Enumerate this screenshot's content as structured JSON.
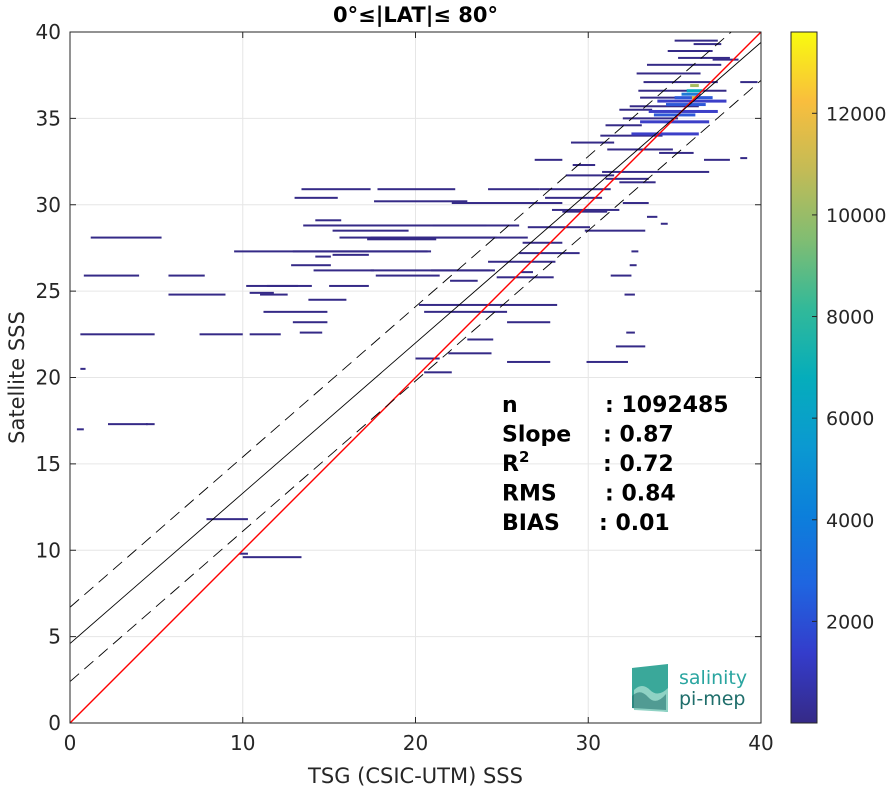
{
  "chart_data": {
    "type": "scatter",
    "title": "0°≤|LAT|≤ 80°",
    "xlabel": "TSG (CSIC-UTM) SSS",
    "ylabel": "Satellite SSS",
    "xlim": [
      0,
      40
    ],
    "ylim": [
      0,
      40
    ],
    "xticks": [
      "0",
      "10",
      "20",
      "30",
      "40"
    ],
    "yticks": [
      "0",
      "5",
      "10",
      "15",
      "20",
      "25",
      "30",
      "35",
      "40"
    ],
    "grid": true,
    "colorbar": {
      "range": [
        0,
        13600
      ],
      "ticks": [
        "2000",
        "4000",
        "6000",
        "8000",
        "10000",
        "12000"
      ],
      "tick_values": [
        2000,
        4000,
        6000,
        8000,
        10000,
        12000
      ],
      "colormap": "parula"
    },
    "lines": [
      {
        "kind": "identity",
        "color": "#ff0000",
        "slope": 1.0,
        "intercept": 0.0
      },
      {
        "kind": "regression",
        "color": "#000000",
        "slope": 0.87,
        "intercept": 4.6
      },
      {
        "kind": "upper-bound",
        "color": "#000000",
        "dash": true,
        "slope": 0.87,
        "intercept": 6.7
      },
      {
        "kind": "lower-bound",
        "color": "#000000",
        "dash": true,
        "slope": 0.87,
        "intercept": 2.4
      }
    ],
    "stats": [
      {
        "label": "n",
        "value": ": 1092485"
      },
      {
        "label": "Slope",
        "value": ": 0.87"
      },
      {
        "label": "R",
        "sup": "2",
        "value": ": 0.72"
      },
      {
        "label": "RMS",
        "value": ": 0.84"
      },
      {
        "label": "BIAS",
        "value": ": 0.01"
      }
    ],
    "density_segments": [
      [
        0.4,
        17.0,
        0.8,
        1
      ],
      [
        2.2,
        17.3,
        4.5,
        1
      ],
      [
        4.4,
        17.3,
        4.9,
        1
      ],
      [
        0.6,
        20.5,
        0.9,
        1
      ],
      [
        0.6,
        22.5,
        4.9,
        1
      ],
      [
        0.8,
        25.9,
        4.0,
        1
      ],
      [
        1.2,
        28.1,
        5.3,
        1
      ],
      [
        5.7,
        25.9,
        7.8,
        1
      ],
      [
        5.7,
        24.8,
        9.0,
        1
      ],
      [
        7.5,
        22.5,
        10.0,
        1
      ],
      [
        10.4,
        22.5,
        12.2,
        1
      ],
      [
        9.5,
        27.3,
        20.7,
        1
      ],
      [
        10.2,
        25.3,
        13.2,
        1
      ],
      [
        11.0,
        24.8,
        12.6,
        1
      ],
      [
        11.4,
        25.3,
        14.0,
        1
      ],
      [
        11.2,
        23.8,
        14.9,
        1
      ],
      [
        12.9,
        23.2,
        14.9,
        1
      ],
      [
        10.4,
        24.9,
        11.8,
        1
      ],
      [
        13.3,
        22.6,
        14.6,
        1
      ],
      [
        13.8,
        24.5,
        16.0,
        1
      ],
      [
        12.8,
        26.5,
        15.1,
        1
      ],
      [
        14.2,
        27.0,
        15.1,
        1
      ],
      [
        12.9,
        27.3,
        20.9,
        1
      ],
      [
        13.0,
        30.4,
        15.5,
        1
      ],
      [
        13.4,
        30.9,
        17.4,
        1
      ],
      [
        14.2,
        29.1,
        15.7,
        1
      ],
      [
        15.2,
        27.1,
        17.3,
        1
      ],
      [
        15.6,
        28.1,
        24.7,
        1
      ],
      [
        17.4,
        28.1,
        26.5,
        1
      ],
      [
        14.1,
        26.2,
        17.6,
        1
      ],
      [
        15.0,
        25.3,
        17.3,
        1
      ],
      [
        13.5,
        28.8,
        26.0,
        1
      ],
      [
        15.2,
        28.5,
        19.6,
        1
      ],
      [
        17.7,
        25.9,
        21.4,
        1
      ],
      [
        17.4,
        26.2,
        24.6,
        1
      ],
      [
        20.9,
        26.2,
        24.3,
        1
      ],
      [
        21.0,
        28.8,
        24.1,
        1
      ],
      [
        22.0,
        25.6,
        23.6,
        1
      ],
      [
        17.2,
        28.0,
        21.2,
        1
      ],
      [
        17.6,
        30.2,
        23.0,
        1
      ],
      [
        17.8,
        30.9,
        22.3,
        1
      ],
      [
        22.1,
        30.1,
        28.5,
        1
      ],
      [
        24.2,
        30.9,
        27.2,
        1
      ],
      [
        27.2,
        30.9,
        31.3,
        1
      ],
      [
        24.2,
        26.7,
        28.1,
        1
      ],
      [
        24.7,
        25.8,
        28.0,
        1
      ],
      [
        26.0,
        27.2,
        29.5,
        1
      ],
      [
        26.2,
        27.8,
        28.5,
        1
      ],
      [
        26.5,
        28.7,
        30.1,
        1
      ],
      [
        26.1,
        26.1,
        26.8,
        1
      ],
      [
        27.9,
        29.7,
        31.8,
        1
      ],
      [
        27.5,
        30.4,
        30.8,
        1
      ],
      [
        28.5,
        29.6,
        31.1,
        1
      ],
      [
        29.8,
        28.5,
        33.3,
        1
      ],
      [
        20.2,
        24.2,
        28.2,
        1
      ],
      [
        25.3,
        23.2,
        27.8,
        1
      ],
      [
        20.5,
        23.8,
        25.3,
        1
      ],
      [
        21.9,
        21.4,
        24.4,
        1
      ],
      [
        20.0,
        21.1,
        21.4,
        1
      ],
      [
        25.3,
        20.9,
        27.8,
        1
      ],
      [
        20.5,
        20.3,
        22.1,
        1
      ],
      [
        7.9,
        11.8,
        10.3,
        1
      ],
      [
        10.0,
        9.6,
        13.4,
        1
      ],
      [
        9.8,
        9.8,
        10.3,
        1
      ],
      [
        23.0,
        22.2,
        24.5,
        1
      ],
      [
        29.9,
        20.9,
        32.3,
        1
      ],
      [
        31.6,
        21.8,
        33.3,
        1
      ],
      [
        32.2,
        22.6,
        32.7,
        1
      ],
      [
        32.1,
        24.8,
        32.7,
        1
      ],
      [
        32.5,
        27.3,
        32.9,
        1
      ],
      [
        31.3,
        25.9,
        32.5,
        1
      ],
      [
        32.4,
        26.5,
        32.8,
        1
      ],
      [
        34.2,
        28.9,
        34.6,
        1
      ],
      [
        33.4,
        29.3,
        34.0,
        1
      ],
      [
        32.0,
        30.1,
        33.5,
        1
      ],
      [
        31.8,
        31.3,
        33.9,
        1
      ],
      [
        28.7,
        31.7,
        31.5,
        1
      ],
      [
        31.0,
        31.5,
        33.5,
        1
      ],
      [
        29.1,
        32.3,
        30.4,
        1
      ],
      [
        26.9,
        32.6,
        28.5,
        1
      ],
      [
        29.0,
        33.6,
        31.5,
        1
      ],
      [
        31.1,
        33.2,
        34.9,
        1
      ],
      [
        30.7,
        34.0,
        34.3,
        1
      ],
      [
        31.0,
        34.6,
        33.1,
        1
      ],
      [
        32.0,
        35.0,
        35.2,
        1
      ],
      [
        31.8,
        35.5,
        33.7,
        1
      ],
      [
        32.4,
        35.7,
        36.4,
        1
      ],
      [
        33.0,
        36.2,
        36.8,
        1
      ],
      [
        32.9,
        36.6,
        38.0,
        1
      ],
      [
        33.2,
        37.1,
        37.5,
        1
      ],
      [
        32.8,
        37.6,
        36.5,
        1
      ],
      [
        33.4,
        38.1,
        37.7,
        1
      ],
      [
        35.2,
        38.5,
        38.2,
        1
      ],
      [
        34.6,
        38.9,
        37.2,
        1
      ],
      [
        35.0,
        39.5,
        37.5,
        1
      ],
      [
        36.1,
        39.3,
        37.7,
        1
      ],
      [
        30.8,
        31.9,
        37.0,
        1
      ],
      [
        34.1,
        33.0,
        36.1,
        1
      ],
      [
        36.7,
        32.6,
        38.2,
        1
      ],
      [
        38.8,
        32.7,
        39.2,
        1
      ],
      [
        38.8,
        37.1,
        39.8,
        1
      ],
      [
        37.2,
        38.4,
        38.7,
        1
      ],
      [
        32.5,
        34.1,
        36.4,
        2
      ],
      [
        33.0,
        34.8,
        37.0,
        2
      ],
      [
        33.5,
        35.4,
        37.5,
        2
      ],
      [
        34.0,
        36.0,
        38.0,
        2
      ],
      [
        33.8,
        35.2,
        36.2,
        3
      ],
      [
        34.5,
        35.8,
        36.8,
        3
      ],
      [
        35.0,
        36.2,
        37.2,
        3
      ],
      [
        35.4,
        36.4,
        36.5,
        4
      ],
      [
        35.7,
        36.6,
        36.6,
        6
      ],
      [
        35.9,
        36.9,
        36.4,
        9
      ],
      [
        36.0,
        36.2,
        36.2,
        11
      ]
    ]
  },
  "logo": {
    "line1": "salinity",
    "line2": "pi-mep"
  }
}
